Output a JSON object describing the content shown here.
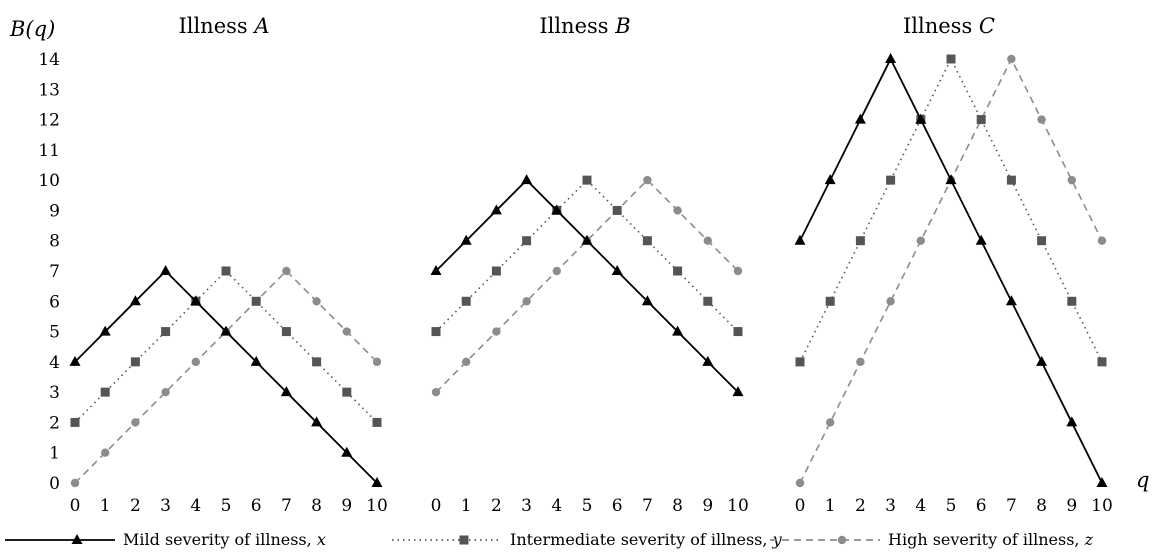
{
  "chart_data": {
    "type": "line",
    "ylabel": "B(q)",
    "xlabel": "q",
    "ylim": [
      0,
      14
    ],
    "xlim": [
      0,
      10
    ],
    "x": [
      0,
      1,
      2,
      3,
      4,
      5,
      6,
      7,
      8,
      9,
      10
    ],
    "x_ticks": [
      "0",
      "1",
      "2",
      "3",
      "4",
      "5",
      "6",
      "7",
      "8",
      "9",
      "10"
    ],
    "y_ticks": [
      "0",
      "1",
      "2",
      "3",
      "4",
      "5",
      "6",
      "7",
      "8",
      "9",
      "10",
      "11",
      "12",
      "13",
      "14"
    ],
    "legend_position": "bottom",
    "legend": [
      {
        "key": "x",
        "name": "Mild severity of illness, ",
        "var": "x",
        "marker": "triangle",
        "dash": "solid",
        "color": "#000000"
      },
      {
        "key": "y",
        "name": "Intermediate severity of illness, ",
        "var": "y",
        "marker": "square",
        "dash": "dotted",
        "color": "#555555"
      },
      {
        "key": "z",
        "name": "High severity of illness, ",
        "var": "z",
        "marker": "circle",
        "dash": "dashed",
        "color": "#8c8c8c"
      }
    ],
    "panels": [
      {
        "title": "Illness ",
        "title_var": "A",
        "series": [
          {
            "key": "x",
            "values": [
              4,
              5,
              6,
              7,
              6,
              5,
              4,
              3,
              2,
              1,
              0
            ]
          },
          {
            "key": "y",
            "values": [
              2,
              3,
              4,
              5,
              6,
              7,
              6,
              5,
              4,
              3,
              2
            ]
          },
          {
            "key": "z",
            "values": [
              0,
              1,
              2,
              3,
              4,
              5,
              6,
              7,
              6,
              5,
              4
            ]
          }
        ]
      },
      {
        "title": "Illness ",
        "title_var": "B",
        "series": [
          {
            "key": "x",
            "values": [
              7,
              8,
              9,
              10,
              9,
              8,
              7,
              6,
              5,
              4,
              3
            ]
          },
          {
            "key": "y",
            "values": [
              5,
              6,
              7,
              8,
              9,
              10,
              9,
              8,
              7,
              6,
              5
            ]
          },
          {
            "key": "z",
            "values": [
              3,
              4,
              5,
              6,
              7,
              8,
              9,
              10,
              9,
              8,
              7
            ]
          }
        ]
      },
      {
        "title": "Illness ",
        "title_var": "C",
        "series": [
          {
            "key": "x",
            "values": [
              8,
              10,
              12,
              14,
              12,
              10,
              8,
              6,
              4,
              2,
              0
            ]
          },
          {
            "key": "y",
            "values": [
              4,
              6,
              8,
              10,
              12,
              14,
              12,
              10,
              8,
              6,
              4
            ]
          },
          {
            "key": "z",
            "values": [
              0,
              2,
              4,
              6,
              8,
              10,
              12,
              14,
              12,
              10,
              8
            ]
          }
        ]
      }
    ]
  }
}
